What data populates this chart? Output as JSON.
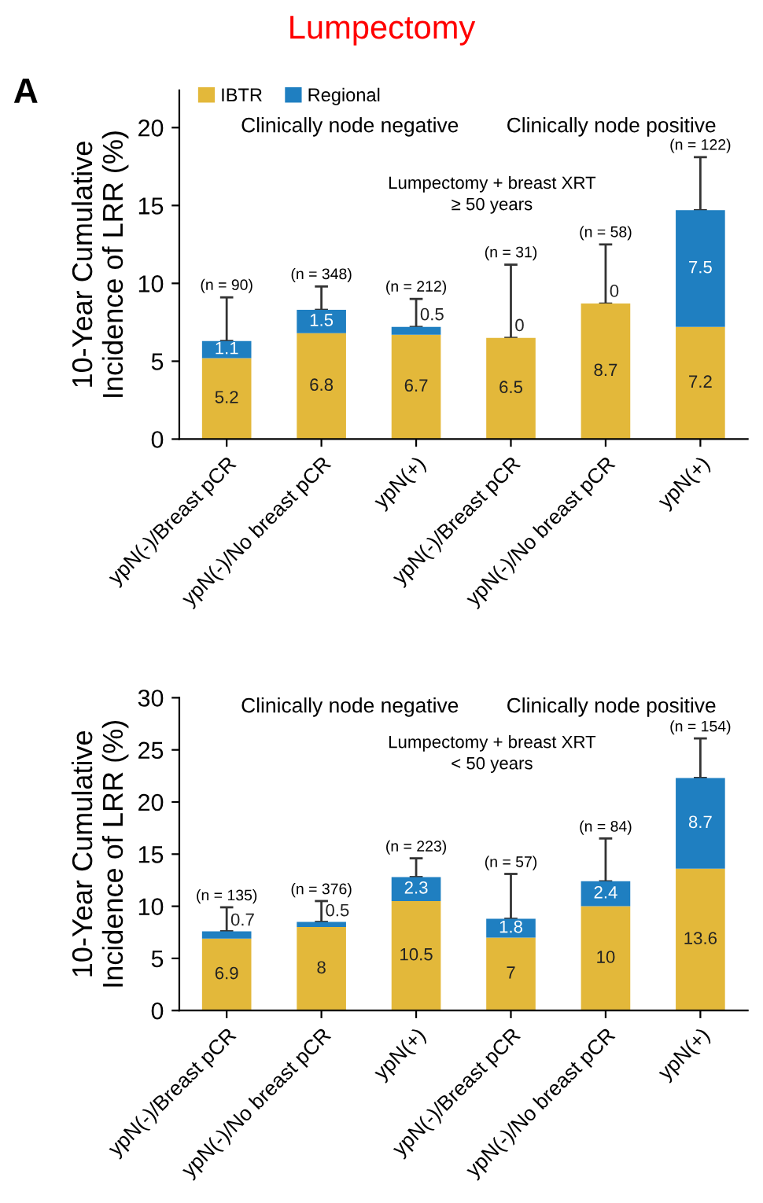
{
  "chart_data": [
    {
      "type": "bar",
      "title": "Lumpectomy",
      "ylabel": "10-Year Cumulative\nIncidence of LRR (%)",
      "stacked": true,
      "legend": "top left",
      "data_labels": true,
      "grid": false,
      "categories": [
        "ypN(-)/Breast pCR",
        "ypN(-)/No breast pCR",
        "ypN(+)",
        "ypN(-)/Breast pCR",
        "ypN(-)/No breast pCR",
        "ypN(+)"
      ],
      "series": [
        {
          "name": "IBTR",
          "color": "#e3b83a",
          "values": [
            5.2,
            6.8,
            6.7,
            6.5,
            8.7,
            7.2
          ]
        },
        {
          "name": "Regional",
          "color": "#1f7fc1",
          "values": [
            1.1,
            1.5,
            0.5,
            0,
            0,
            7.5
          ],
          "errors": [
            [
              6.3,
              9.1
            ],
            [
              8.3,
              9.8
            ],
            [
              7.2,
              9.0
            ],
            [
              6.5,
              11.2
            ],
            [
              8.7,
              12.5
            ],
            [
              14.7,
              18.1
            ]
          ]
        }
      ],
      "ylim": [
        0,
        22.4
      ],
      "yticks": [
        0,
        5,
        10,
        15,
        20
      ],
      "annotations": [
        "A",
        "Clinically node negative",
        "Clinically node positive",
        "Lumpectomy + breast XRT\n≥ 50 years",
        "(n = 90)",
        "(n = 348)",
        "(n = 212)",
        "(n = 31)",
        "(n = 58)",
        "(n = 122)"
      ]
    },
    {
      "type": "bar",
      "ylabel": "10-Year Cumulative\nIncidence of LRR (%)",
      "stacked": true,
      "data_labels": true,
      "grid": false,
      "categories": [
        "ypN(-)/Breast pCR",
        "ypN(-)/No breast pCR",
        "ypN(+)",
        "ypN(-)/Breast pCR",
        "ypN(-)/No breast pCR",
        "ypN(+)"
      ],
      "series": [
        {
          "color": "#e3b83a",
          "values": [
            6.9,
            8,
            10.5,
            7,
            10,
            13.6
          ]
        },
        {
          "color": "#1f7fc1",
          "values": [
            0.7,
            0.5,
            2.3,
            1.8,
            2.4,
            8.7
          ],
          "errors": [
            [
              7.6,
              9.9
            ],
            [
              8.5,
              10.5
            ],
            [
              12.8,
              14.6
            ],
            [
              8.8,
              13.1
            ],
            [
              12.4,
              16.5
            ],
            [
              22.3,
              26.1
            ]
          ]
        }
      ],
      "ylim": [
        0,
        30
      ],
      "yticks": [
        0,
        5,
        10,
        15,
        20,
        25,
        30
      ],
      "annotations": [
        "Clinically node negative",
        "Clinically node positive",
        "Lumpectomy + breast XRT\n< 50 years",
        "(n = 135)",
        "(n = 376)",
        "(n = 223)",
        "(n = 57)",
        "(n = 84)",
        "(n = 154)"
      ]
    }
  ]
}
